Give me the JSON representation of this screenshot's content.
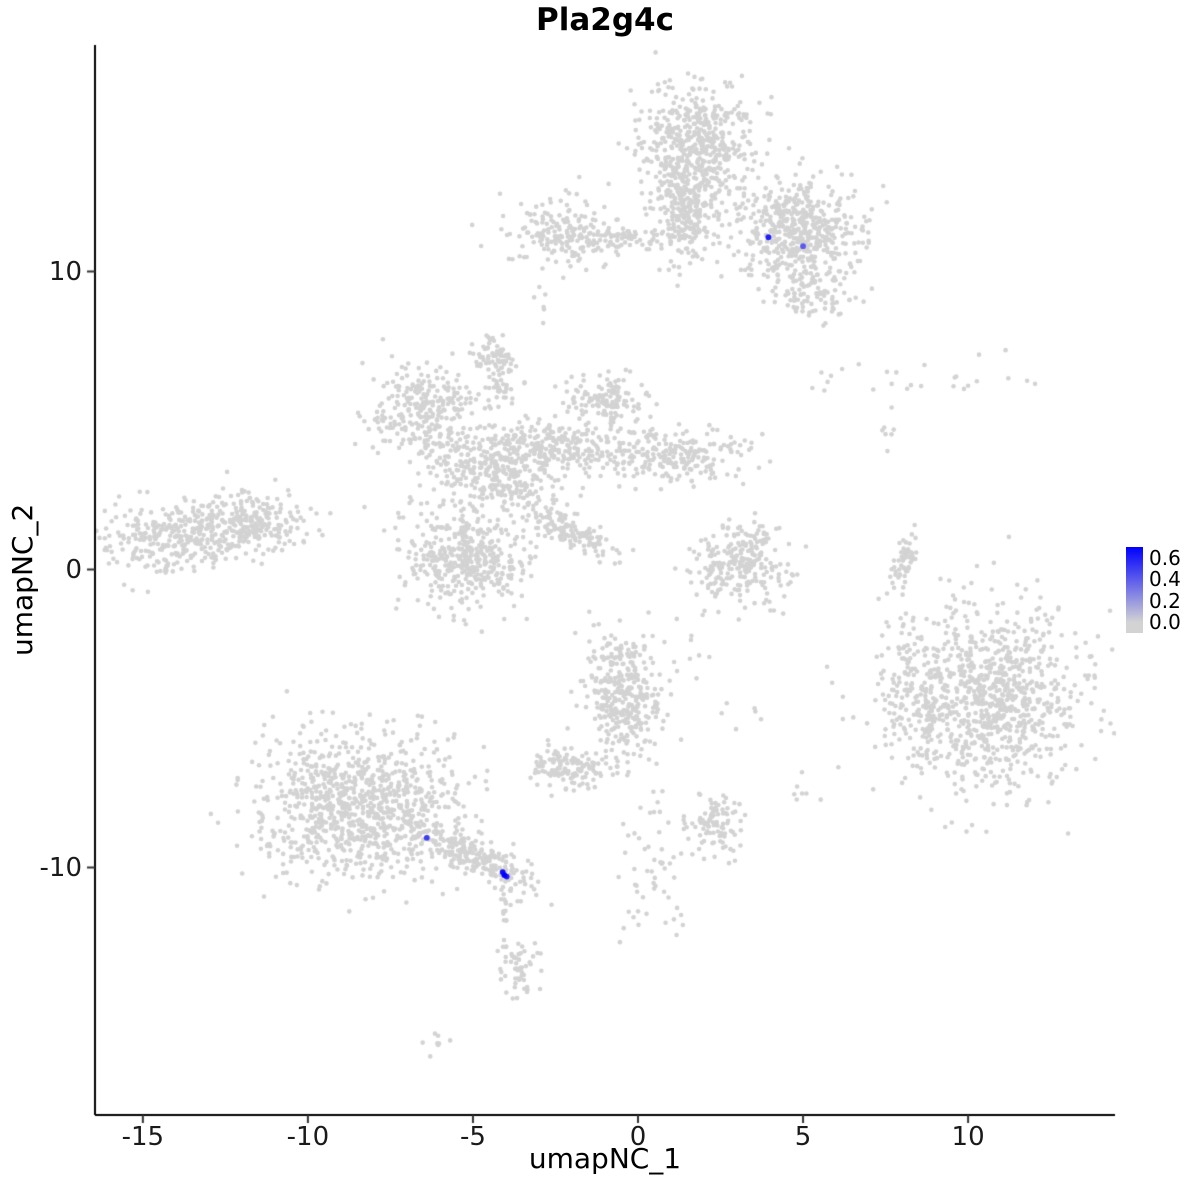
{
  "chart_data": {
    "type": "scatter",
    "title": "Pla2g4c",
    "xlabel": "umapNC_1",
    "ylabel": "umapNC_2",
    "xlim": [
      -16.45,
      14.45
    ],
    "ylim": [
      -18.3,
      17.6
    ],
    "x_ticks": [
      -15,
      -10,
      -5,
      0,
      5,
      10
    ],
    "y_ticks": [
      -10,
      0,
      10
    ],
    "grid": false,
    "point_color_low": "#d3d3d3",
    "point_color_high": "#0000ff",
    "color_max": 0.7,
    "legend": {
      "position": "right",
      "top_value": 0.7,
      "bottom_value": -0.1,
      "ticks": [
        {
          "label": "0.6",
          "value": 0.6
        },
        {
          "label": "0.4",
          "value": 0.4
        },
        {
          "label": "0.2",
          "value": 0.2
        },
        {
          "label": "0.0",
          "value": 0.0
        }
      ]
    },
    "background_clusters": [
      {
        "cx": 1.8,
        "cy": 14.2,
        "sx": 0.85,
        "sy": 0.95,
        "n": 480
      },
      {
        "cx": 1.5,
        "cy": 12.2,
        "sx": 0.5,
        "sy": 0.9,
        "n": 260
      },
      {
        "cx": 4.85,
        "cy": 11.35,
        "sx": 0.95,
        "sy": 0.85,
        "n": 520
      },
      {
        "cx": 5.25,
        "cy": 9.2,
        "sx": 0.6,
        "sy": 0.45,
        "n": 90
      },
      {
        "cx": -0.4,
        "cy": 11.15,
        "sx": 1.1,
        "sy": 0.22,
        "n": 85
      },
      {
        "cx": -2.3,
        "cy": 11.35,
        "sx": 0.75,
        "sy": 0.6,
        "n": 170
      },
      {
        "cx": -2.9,
        "cy": 8.8,
        "sx": 0.2,
        "sy": 0.5,
        "n": 6
      },
      {
        "cx": -4.4,
        "cy": 7.2,
        "sx": 0.33,
        "sy": 0.38,
        "n": 55
      },
      {
        "cx": -6.45,
        "cy": 5.3,
        "sx": 0.85,
        "sy": 0.85,
        "n": 280
      },
      {
        "cx": -4.4,
        "cy": 3.4,
        "sx": 0.95,
        "sy": 0.75,
        "n": 360
      },
      {
        "cx": -2.35,
        "cy": 4.1,
        "sx": 1.1,
        "sy": 0.4,
        "n": 220,
        "rot": -8
      },
      {
        "cx": 1.2,
        "cy": 3.85,
        "sx": 1.05,
        "sy": 0.45,
        "n": 210
      },
      {
        "cx": -0.95,
        "cy": 5.65,
        "sx": 0.6,
        "sy": 0.5,
        "n": 140
      },
      {
        "cx": -4.2,
        "cy": 6.3,
        "sx": 0.28,
        "sy": 0.45,
        "n": 45
      },
      {
        "cx": -5.15,
        "cy": 0.35,
        "sx": 0.95,
        "sy": 0.8,
        "n": 420
      },
      {
        "cx": -2.05,
        "cy": 1.35,
        "sx": 0.9,
        "sy": 0.25,
        "n": 140,
        "rot": -30
      },
      {
        "cx": -13.2,
        "cy": 1.25,
        "sx": 1.5,
        "sy": 0.6,
        "n": 480,
        "rot": 8
      },
      {
        "cx": -11.5,
        "cy": 1.5,
        "sx": 0.5,
        "sy": 0.3,
        "n": 60
      },
      {
        "cx": 3.1,
        "cy": 0.15,
        "sx": 0.75,
        "sy": 0.7,
        "n": 250
      },
      {
        "cx": 8.1,
        "cy": 0.3,
        "sx": 0.14,
        "sy": 0.5,
        "n": 55,
        "rot": -10
      },
      {
        "cx": 8.55,
        "cy": 6.4,
        "sx": 1.6,
        "sy": 0.35,
        "n": 26
      },
      {
        "cx": 7.65,
        "cy": 4.8,
        "sx": 0.2,
        "sy": 0.45,
        "n": 7
      },
      {
        "cx": 10.6,
        "cy": -4.35,
        "sx": 1.5,
        "sy": 1.55,
        "n": 950
      },
      {
        "cx": 8.5,
        "cy": -4.3,
        "sx": 0.55,
        "sy": 1.1,
        "n": 110
      },
      {
        "cx": -8.5,
        "cy": -8.0,
        "sx": 1.5,
        "sy": 1.2,
        "n": 950
      },
      {
        "cx": -4.95,
        "cy": -9.65,
        "sx": 1.0,
        "sy": 0.28,
        "n": 230,
        "rot": -28
      },
      {
        "cx": -4.05,
        "cy": -11.25,
        "sx": 0.12,
        "sy": 0.55,
        "n": 16
      },
      {
        "cx": -0.45,
        "cy": -4.2,
        "sx": 0.55,
        "sy": 1.05,
        "n": 360,
        "rot": 5
      },
      {
        "cx": -2.05,
        "cy": -6.7,
        "sx": 0.55,
        "sy": 0.38,
        "n": 130
      },
      {
        "cx": 2.35,
        "cy": -8.5,
        "sx": 0.42,
        "sy": 0.48,
        "n": 95
      },
      {
        "cx": 0.35,
        "cy": -9.9,
        "sx": 0.55,
        "sy": 1.3,
        "n": 55
      },
      {
        "cx": -3.6,
        "cy": -13.5,
        "sx": 0.33,
        "sy": 0.5,
        "n": 55
      },
      {
        "cx": -6.1,
        "cy": -15.8,
        "sx": 0.18,
        "sy": 0.22,
        "n": 8
      },
      {
        "cx": 4.9,
        "cy": -7.4,
        "sx": 0.25,
        "sy": 0.3,
        "n": 7
      },
      {
        "cx": 3.15,
        "cy": -5.1,
        "sx": 0.3,
        "sy": 0.3,
        "n": 6
      },
      {
        "cx": 1.8,
        "cy": -3.1,
        "sx": 0.5,
        "sy": 0.7,
        "n": 10
      }
    ],
    "highlighted_points": [
      {
        "x": 3.95,
        "y": 11.15,
        "value": 0.6
      },
      {
        "x": 5.0,
        "y": 10.85,
        "value": 0.4
      },
      {
        "x": -6.4,
        "y": -9.0,
        "value": 0.5
      },
      {
        "x": -4.1,
        "y": -10.15,
        "value": 0.65
      },
      {
        "x": -3.98,
        "y": -10.3,
        "value": 0.6
      },
      {
        "x": -4.05,
        "y": -10.25,
        "value": 0.7
      }
    ]
  }
}
